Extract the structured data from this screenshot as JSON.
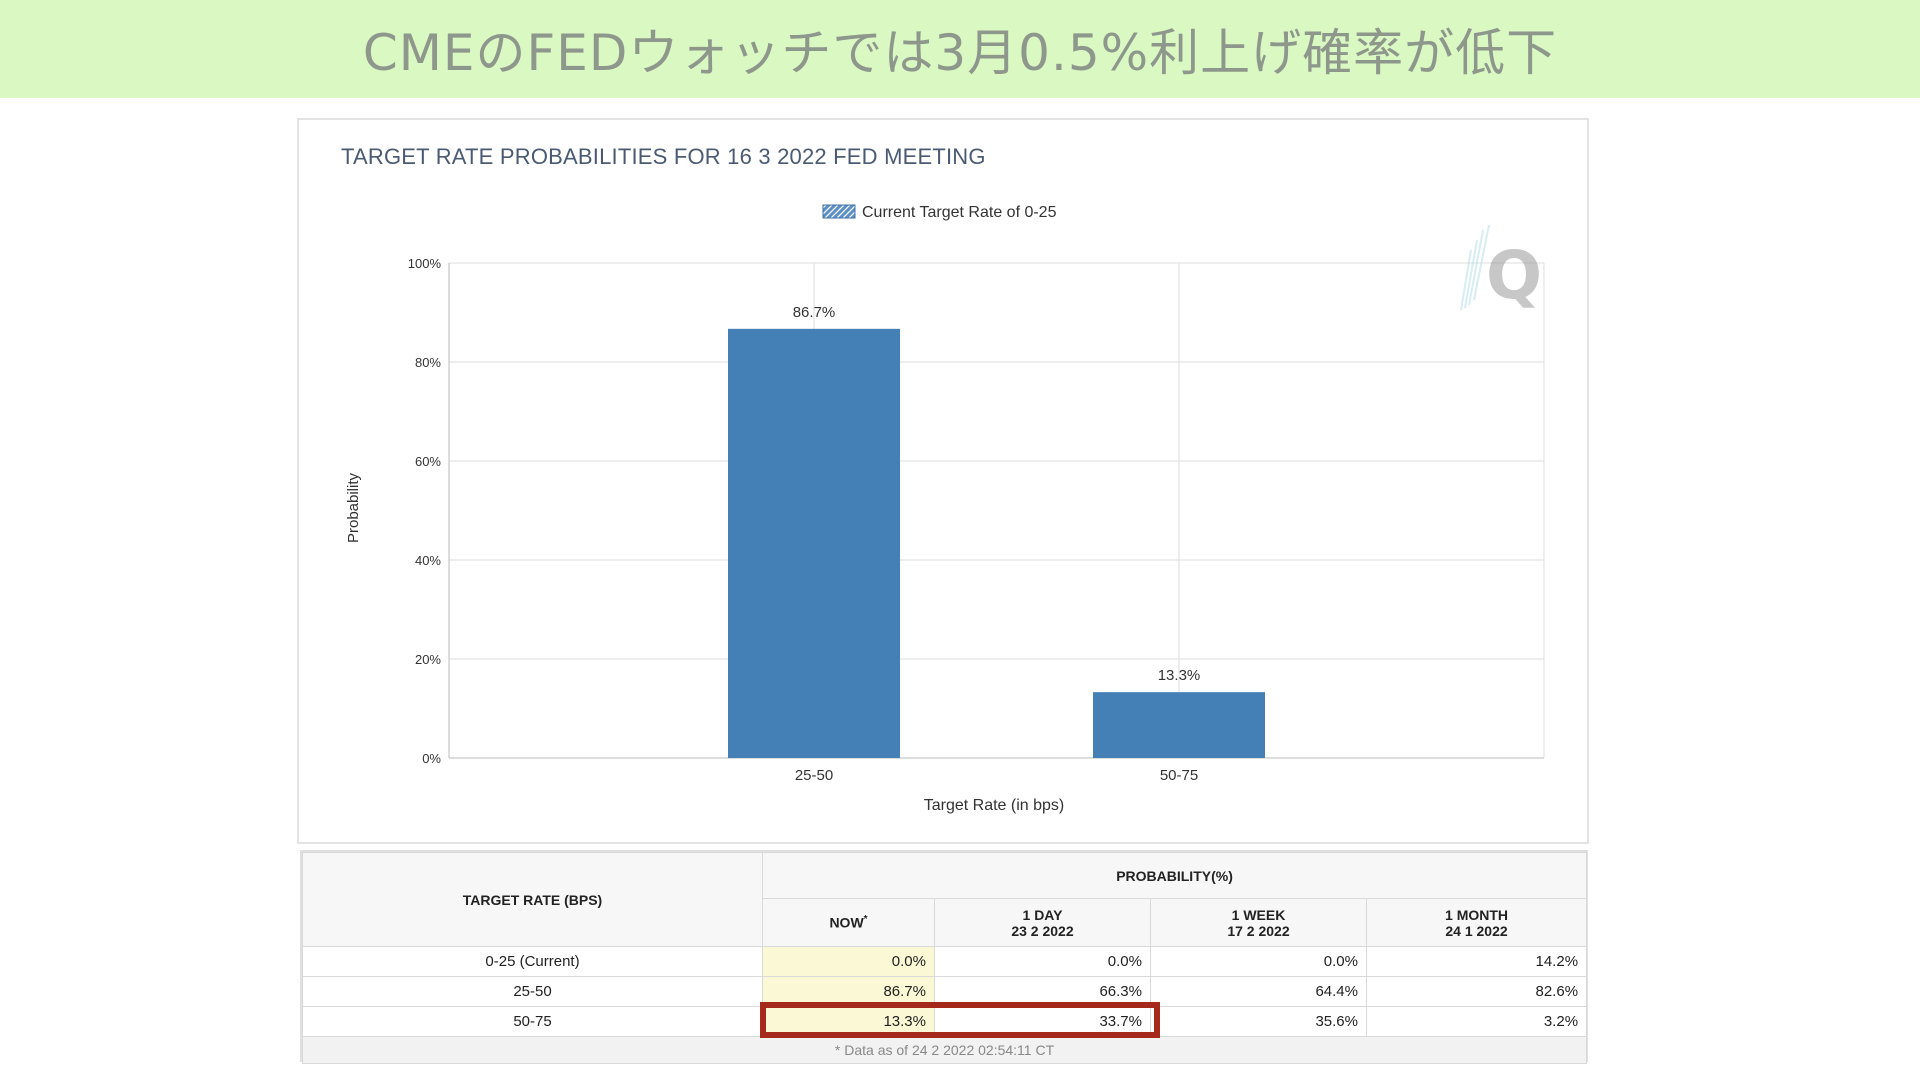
{
  "banner": {
    "title": "CMEのFEDウォッチでは3月0.5%利上げ確率が低下"
  },
  "chart_data": {
    "type": "bar",
    "title": "TARGET RATE PROBABILITIES FOR 16 3 2022 FED MEETING",
    "legend": "Current Target Rate of 0-25",
    "legend_position": "top-center",
    "xlabel": "Target Rate (in bps)",
    "ylabel": "Probability",
    "categories": [
      "25-50",
      "50-75"
    ],
    "values": [
      86.7,
      13.3
    ],
    "value_labels": [
      "86.7%",
      "13.3%"
    ],
    "ylim": [
      0,
      100
    ],
    "yticks": [
      "0%",
      "20%",
      "40%",
      "60%",
      "80%",
      "100%"
    ],
    "grid": true,
    "bar_color": "#4480b6",
    "watermark": "Q"
  },
  "table": {
    "rate_header": "TARGET RATE (BPS)",
    "prob_header": "PROBABILITY(%)",
    "columns": [
      {
        "line1": "NOW",
        "line2": "",
        "marker": "*"
      },
      {
        "line1": "1 DAY",
        "line2": "23 2 2022",
        "marker": ""
      },
      {
        "line1": "1 WEEK",
        "line2": "17 2 2022",
        "marker": ""
      },
      {
        "line1": "1 MONTH",
        "line2": "24 1 2022",
        "marker": ""
      }
    ],
    "rows": [
      {
        "rate": "0-25 (Current)",
        "values": [
          "0.0%",
          "0.0%",
          "0.0%",
          "14.2%"
        ]
      },
      {
        "rate": "25-50",
        "values": [
          "86.7%",
          "66.3%",
          "64.4%",
          "82.6%"
        ]
      },
      {
        "rate": "50-75",
        "values": [
          "13.3%",
          "33.7%",
          "35.6%",
          "3.2%"
        ]
      }
    ],
    "footnote": "* Data as of 24 2 2022 02:54:11 CT"
  },
  "colors": {
    "banner_bg": "#d9f8c2",
    "highlight": "#a52a1c",
    "now_column": "#fbf8d5"
  }
}
